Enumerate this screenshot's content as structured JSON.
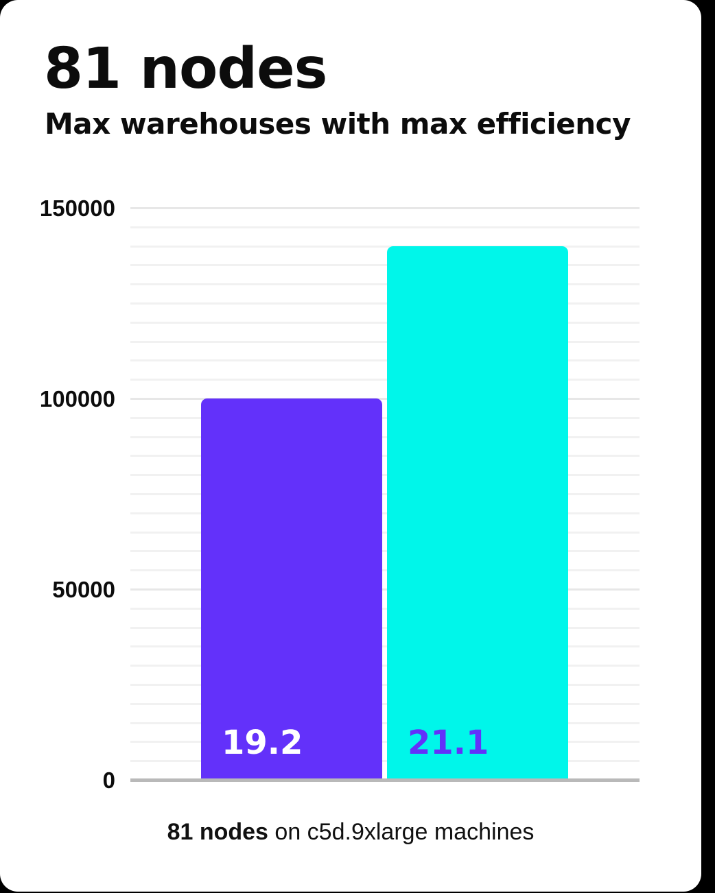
{
  "page": {
    "background_color": "#000000",
    "card_color": "#ffffff"
  },
  "header": {
    "title": "81 nodes",
    "subtitle": "Max warehouses with max efficiency"
  },
  "chart_data": {
    "type": "bar",
    "title": "81 nodes",
    "subtitle": "Max warehouses with max efficiency",
    "categories": [
      "19.2",
      "21.1"
    ],
    "values": [
      100000,
      140000
    ],
    "bar_colors": [
      "#6331fa",
      "#00f6ea"
    ],
    "bar_label_colors": [
      "#ffffff",
      "#6331fa"
    ],
    "xlabel": "",
    "ylabel": "",
    "ylim": [
      0,
      150000
    ],
    "yticks": [
      150000,
      100000,
      50000,
      0
    ],
    "grid": {
      "minor_step": 5000,
      "major_step": 50000,
      "minor_color": "#f1f1f1",
      "major_color": "#e7e7e7",
      "axis_color": "#b9b9b9"
    },
    "legend_position": "none"
  },
  "caption": {
    "bold": "81 nodes",
    "rest": " on c5d.9xlarge machines"
  }
}
